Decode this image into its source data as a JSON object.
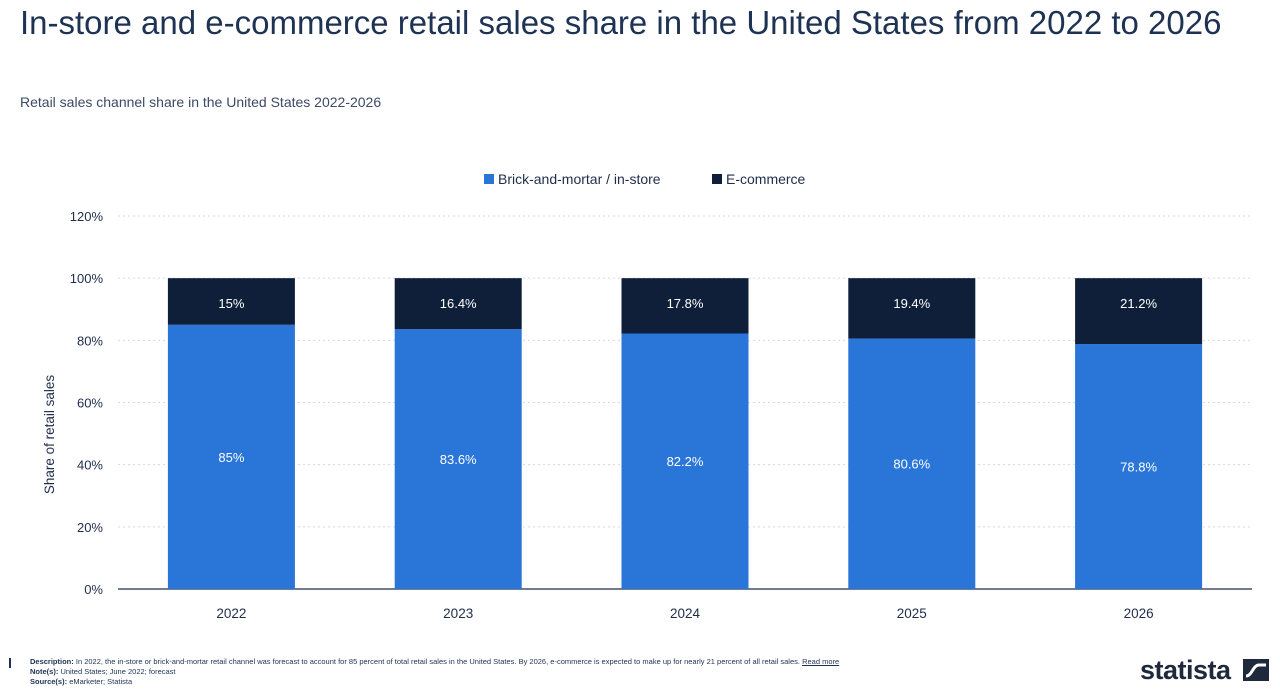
{
  "title": "In-store and e-commerce retail sales share in the United States from 2022 to 2026",
  "subtitle": "Retail sales channel share in the United States 2022-2026",
  "footer": {
    "description_label": "Description:",
    "description": "In 2022, the in-store or brick-and-mortar retail channel was forecast to account for 85 percent of total retail sales in the United States. By 2026, e-commerce is expected to make up for nearly 21 percent of all retail sales.",
    "read_more": "Read more",
    "notes_label": "Note(s):",
    "notes": "United States; June 2022; forecast",
    "source_label": "Source(s):",
    "source": "eMarketer; Statista",
    "brand": "statista"
  },
  "colors": {
    "in_store": "#2a75d8",
    "ecommerce": "#0f1f3a",
    "label_light": "#ffffff",
    "grid": "#d5d9e0"
  },
  "chart_data": {
    "type": "bar",
    "stacked": true,
    "categories": [
      "2022",
      "2023",
      "2024",
      "2025",
      "2026"
    ],
    "series": [
      {
        "name": "Brick-and-mortar / in-store",
        "values": [
          85,
          83.6,
          82.2,
          80.6,
          78.8
        ],
        "labels": [
          "85%",
          "83.6%",
          "82.2%",
          "80.6%",
          "78.8%"
        ]
      },
      {
        "name": "E-commerce",
        "values": [
          15,
          16.4,
          17.8,
          19.4,
          21.2
        ],
        "labels": [
          "15%",
          "16.4%",
          "17.8%",
          "19.4%",
          "21.2%"
        ]
      }
    ],
    "ylabel": "Share of retail sales",
    "xlabel": "",
    "ylim": [
      0,
      120
    ],
    "yticks": [
      0,
      20,
      40,
      60,
      80,
      100,
      120
    ],
    "ytick_labels": [
      "0%",
      "20%",
      "40%",
      "60%",
      "80%",
      "100%",
      "120%"
    ],
    "grid": true,
    "legend": "top-center"
  }
}
